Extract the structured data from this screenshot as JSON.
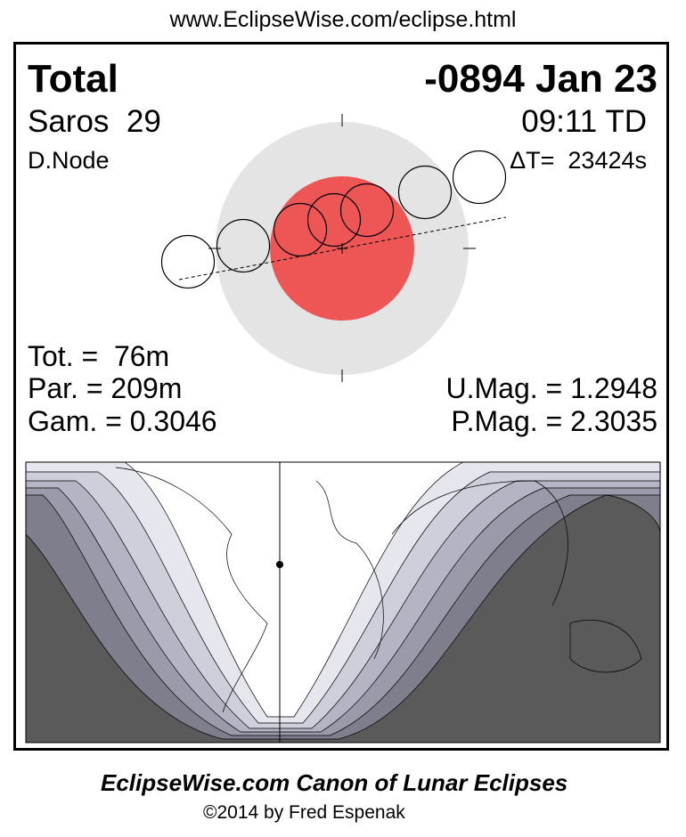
{
  "url": "www.EclipseWise.com/eclipse.html",
  "eclipse_type": "Total",
  "date": "-0894 Jan 23",
  "saros": "Saros  29",
  "time": "09:11 TD",
  "node": "D.Node",
  "delta_t": "ΔT=  23424s",
  "totality": "Tot. =  76m",
  "partial": "Par. = 209m",
  "gamma": "Gam. = 0.3046",
  "umbral_mag": "U.Mag. = 1.2948",
  "penumbral_mag": "P.Mag. = 2.3035",
  "footer_title": "EclipseWise.com Canon of Lunar Eclipses",
  "copyright": "©2014 by Fred Espenak",
  "colors": {
    "umbra": "#ee5555",
    "penumbra": "#e4e4e4",
    "night": "#5a5a5a"
  }
}
